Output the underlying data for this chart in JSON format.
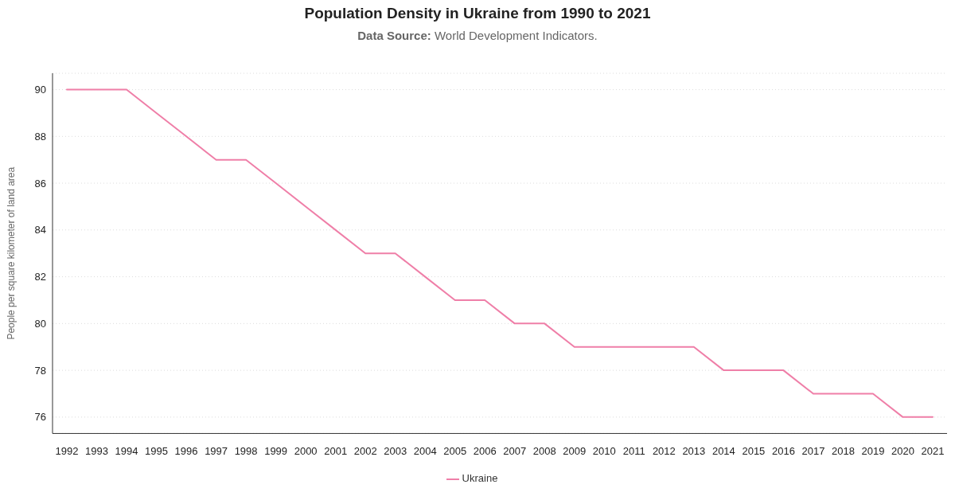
{
  "chart_data": {
    "type": "line",
    "title": "Population Density in Ukraine from 1990 to 2021",
    "subtitle": "Data Source: World Development Indicators.",
    "ylabel": "People per square kilometer of land area",
    "categories": [
      "1992",
      "1993",
      "1994",
      "1995",
      "1996",
      "1997",
      "1998",
      "1999",
      "2000",
      "2001",
      "2002",
      "2003",
      "2004",
      "2005",
      "2006",
      "2007",
      "2008",
      "2009",
      "2010",
      "2011",
      "2012",
      "2013",
      "2014",
      "2015",
      "2016",
      "2017",
      "2018",
      "2019",
      "2020",
      "2021"
    ],
    "series": [
      {
        "name": "Ukraine",
        "color": "#ef7fa8",
        "values": [
          90,
          90,
          90,
          89,
          88,
          87,
          87,
          86,
          85,
          84,
          83,
          83,
          82,
          81,
          81,
          80,
          80,
          79,
          79,
          79,
          79,
          79,
          78,
          78,
          78,
          77,
          77,
          77,
          76,
          76
        ]
      }
    ],
    "ylim": [
      75.3,
      90.7
    ],
    "yticks": [
      76,
      78,
      80,
      82,
      84,
      86,
      88,
      90
    ],
    "grid": "y",
    "legend": "bottom",
    "marker": "none",
    "line_style": "solid"
  }
}
